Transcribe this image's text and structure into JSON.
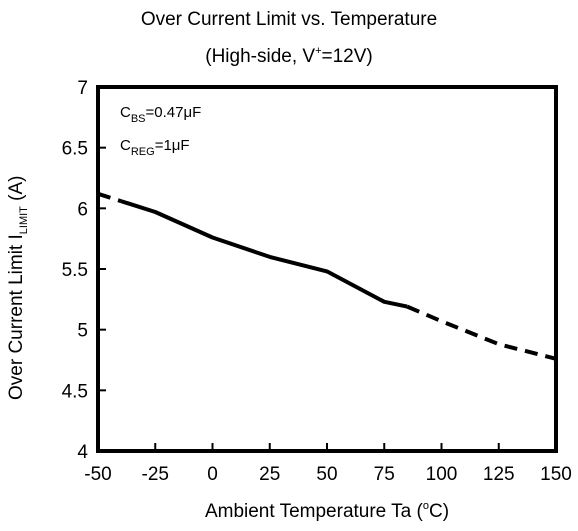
{
  "chart_data": {
    "type": "line",
    "title": {
      "line1": "Over Current Limit vs. Temperature",
      "line2_prefix": "(High-side, V",
      "line2_sup": "+",
      "line2_suffix": "=12V)"
    },
    "ylabel": {
      "prefix": "Over Current Limit  I",
      "sub": "LIMIT",
      "suffix": "  (A)"
    },
    "xlabel": {
      "prefix": "Ambient Temperature  Ta  (",
      "sup": "o",
      "suffix": "C)"
    },
    "xlim": [
      -50,
      150
    ],
    "ylim": [
      4,
      7
    ],
    "xticks": [
      -50,
      -25,
      0,
      25,
      50,
      75,
      100,
      125,
      150
    ],
    "yticks": [
      4,
      4.5,
      5,
      5.5,
      6,
      6.5,
      7
    ],
    "ytick_labels": [
      "4",
      "4.5",
      "5",
      "5.5",
      "6",
      "6.5",
      "7"
    ],
    "grid": false,
    "annotations": [
      {
        "base": "C",
        "sub": "BS",
        "value": "=0.47μF"
      },
      {
        "base": "C",
        "sub": "REG",
        "value": "=1μF"
      }
    ],
    "series": [
      {
        "segments": [
          {
            "style": "dashed",
            "points": [
              [
                -50,
                6.12
              ],
              [
                -40,
                6.06
              ]
            ]
          },
          {
            "style": "solid",
            "points": [
              [
                -40,
                6.06
              ],
              [
                -25,
                5.97
              ],
              [
                0,
                5.76
              ],
              [
                25,
                5.6
              ],
              [
                50,
                5.48
              ],
              [
                75,
                5.23
              ],
              [
                85,
                5.19
              ]
            ]
          },
          {
            "style": "dashed",
            "points": [
              [
                85,
                5.19
              ],
              [
                100,
                5.07
              ],
              [
                125,
                4.88
              ],
              [
                150,
                4.76
              ]
            ]
          }
        ]
      }
    ]
  }
}
